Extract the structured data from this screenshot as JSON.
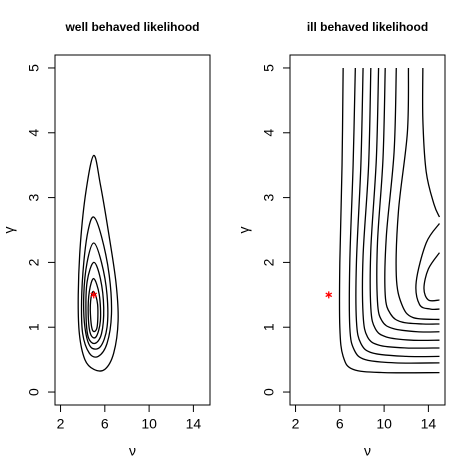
{
  "chart_data": [
    {
      "type": "contour",
      "title": "well behaved likelihood",
      "xlabel": "ν",
      "ylabel": "γ",
      "xlim": [
        1.5,
        15.5
      ],
      "ylim": [
        -0.2,
        5.2
      ],
      "xticks": [
        2,
        6,
        10,
        14
      ],
      "yticks": [
        0,
        1,
        2,
        3,
        4,
        5
      ],
      "closed": true,
      "color": "#000000",
      "marker": {
        "x": 5,
        "y": 1.5,
        "color": "#ff0000"
      },
      "series": [
        {
          "x": [
            5,
            5.6,
            6.3,
            7,
            7.2,
            6.8,
            6,
            5,
            4.2,
            3.7,
            3.6,
            3.8,
            4.3
          ],
          "y": [
            3.65,
            3.2,
            2.5,
            1.7,
            1.1,
            0.6,
            0.35,
            0.35,
            0.5,
            0.9,
            1.5,
            2.3,
            3.1
          ]
        },
        {
          "x": [
            5,
            5.7,
            6.4,
            6.6,
            6.2,
            5.4,
            4.6,
            4,
            3.9,
            4.1,
            4.5
          ],
          "y": [
            2.7,
            2.4,
            1.8,
            1.2,
            0.75,
            0.55,
            0.6,
            0.9,
            1.4,
            2,
            2.5
          ]
        },
        {
          "x": [
            5,
            5.7,
            6.2,
            6.2,
            5.6,
            4.7,
            4.2,
            4.1,
            4.4
          ],
          "y": [
            2.3,
            2,
            1.5,
            1,
            0.7,
            0.7,
            1,
            1.5,
            2
          ]
        },
        {
          "x": [
            5,
            5.6,
            5.9,
            5.7,
            5.1,
            4.5,
            4.3,
            4.4
          ],
          "y": [
            2,
            1.75,
            1.3,
            0.9,
            0.75,
            0.85,
            1.2,
            1.7
          ]
        },
        {
          "x": [
            5,
            5.5,
            5.6,
            5.2,
            4.7,
            4.5,
            4.6
          ],
          "y": [
            1.75,
            1.5,
            1.1,
            0.85,
            0.9,
            1.2,
            1.55
          ]
        },
        {
          "x": [
            5,
            5.35,
            5.3,
            4.9,
            4.7,
            4.75
          ],
          "y": [
            1.55,
            1.35,
            1,
            0.95,
            1.2,
            1.45
          ]
        }
      ]
    },
    {
      "type": "contour",
      "title": "ill behaved likelihood",
      "xlabel": "ν",
      "ylabel": "γ",
      "xlim": [
        1.5,
        15.5
      ],
      "ylim": [
        -0.2,
        5.2
      ],
      "xticks": [
        2,
        6,
        10,
        14
      ],
      "yticks": [
        0,
        1,
        2,
        3,
        4,
        5
      ],
      "closed": false,
      "color": "#000000",
      "marker": {
        "x": 5,
        "y": 1.5,
        "color": "#ff0000"
      },
      "series": [
        {
          "x": [
            6.3,
            6.2,
            6,
            6,
            6.3,
            7.2,
            10,
            15
          ],
          "y": [
            5,
            3.5,
            2,
            1,
            0.55,
            0.35,
            0.3,
            0.3
          ]
        },
        {
          "x": [
            7.4,
            7.2,
            6.9,
            6.9,
            7.3,
            8.3,
            11,
            15
          ],
          "y": [
            5,
            3.5,
            2,
            1,
            0.65,
            0.5,
            0.45,
            0.45
          ]
        },
        {
          "x": [
            8.1,
            7.9,
            7.5,
            7.5,
            7.9,
            9,
            12,
            15
          ],
          "y": [
            5,
            3.5,
            2,
            1.1,
            0.75,
            0.6,
            0.55,
            0.55
          ]
        },
        {
          "x": [
            8.8,
            8.6,
            8.1,
            8.1,
            8.5,
            9.6,
            12,
            15
          ],
          "y": [
            5,
            3.5,
            2.1,
            1.2,
            0.85,
            0.72,
            0.68,
            0.68
          ]
        },
        {
          "x": [
            9.5,
            9.3,
            8.8,
            8.8,
            9.2,
            10.2,
            12.5,
            15
          ],
          "y": [
            5,
            3.6,
            2.2,
            1.3,
            0.98,
            0.85,
            0.8,
            0.8
          ]
        },
        {
          "x": [
            10.1,
            9.9,
            9.4,
            9.4,
            9.8,
            10.8,
            13,
            15
          ],
          "y": [
            5,
            3.6,
            2.3,
            1.4,
            1.1,
            0.98,
            0.93,
            0.93
          ]
        },
        {
          "x": [
            11.1,
            10.9,
            10.2,
            10.1,
            10.6,
            11.6,
            13.5,
            15
          ],
          "y": [
            5,
            3.7,
            2.4,
            1.5,
            1.2,
            1.08,
            1.05,
            1.05
          ]
        },
        {
          "x": [
            12.2,
            12.1,
            11.3,
            11.1,
            11.6,
            12.6,
            15
          ],
          "y": [
            5,
            4,
            2.8,
            1.8,
            1.35,
            1.15,
            1.12
          ]
        },
        {
          "x": [
            13.5,
            13.5,
            13.8,
            14.5,
            15
          ],
          "y": [
            5,
            4.2,
            3.4,
            2.9,
            2.7
          ]
        },
        {
          "x": [
            15,
            13.8,
            12.9,
            13.2,
            14.2,
            15
          ],
          "y": [
            2.6,
            2.3,
            1.7,
            1.35,
            1.28,
            1.28
          ]
        },
        {
          "x": [
            15,
            14,
            13.6,
            14,
            15
          ],
          "y": [
            2.15,
            1.9,
            1.6,
            1.42,
            1.42
          ]
        }
      ]
    }
  ]
}
